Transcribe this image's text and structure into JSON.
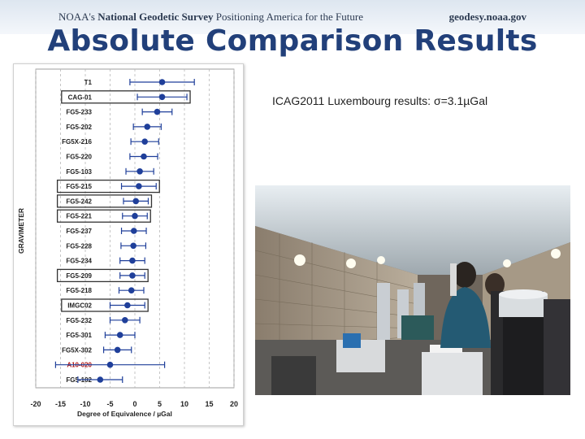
{
  "header": {
    "left_prefix": "NOAA's",
    "left_org": "National Geodetic Survey",
    "left_tagline": "Positioning America for the Future",
    "right_site": "geodesy.noaa.gov"
  },
  "slide": {
    "title": "Absolute Comparison Results",
    "caption": "ICAG2011 Luxembourg results:  σ=3.1µGal"
  },
  "photo": {
    "description": ""
  },
  "chart_data": {
    "type": "scatter",
    "orientation": "horizontal-errorbar",
    "xlabel": "Degree of Equivalence / µGal",
    "ylabel": "GRAVIMETER",
    "xlim": [
      -20,
      20
    ],
    "xticks": [
      -20,
      -15,
      -10,
      -5,
      0,
      5,
      10,
      15,
      20
    ],
    "grid": "dashed vertical",
    "point_color": "#1f3f9a",
    "highlight_box_color": "#333333",
    "instruments": [
      {
        "name": "T1",
        "value": 5.5,
        "err": 6.5,
        "highlight": false
      },
      {
        "name": "CAG-01",
        "value": 5.5,
        "err": 5.0,
        "highlight": true
      },
      {
        "name": "FG5-233",
        "value": 4.5,
        "err": 3.0,
        "highlight": false
      },
      {
        "name": "FG5-202",
        "value": 2.5,
        "err": 2.8,
        "highlight": false
      },
      {
        "name": "FG5X-216",
        "value": 2.0,
        "err": 2.8,
        "highlight": false
      },
      {
        "name": "FG5-220",
        "value": 1.8,
        "err": 2.8,
        "highlight": false
      },
      {
        "name": "FG5-103",
        "value": 1.0,
        "err": 2.8,
        "highlight": false
      },
      {
        "name": "FG5-215",
        "value": 0.8,
        "err": 3.5,
        "highlight": true
      },
      {
        "name": "FG5-242",
        "value": 0.2,
        "err": 2.5,
        "highlight": true
      },
      {
        "name": "FG5-221",
        "value": 0.0,
        "err": 2.5,
        "highlight": true
      },
      {
        "name": "FG5-237",
        "value": -0.2,
        "err": 2.5,
        "highlight": false
      },
      {
        "name": "FG5-228",
        "value": -0.3,
        "err": 2.5,
        "highlight": false
      },
      {
        "name": "FG5-234",
        "value": -0.5,
        "err": 2.5,
        "highlight": false
      },
      {
        "name": "FG5-209",
        "value": -0.5,
        "err": 2.5,
        "highlight": true
      },
      {
        "name": "FG5-218",
        "value": -0.7,
        "err": 2.5,
        "highlight": false
      },
      {
        "name": "IMGC02",
        "value": -1.5,
        "err": 3.5,
        "highlight": true
      },
      {
        "name": "FG5-232",
        "value": -2.0,
        "err": 3.0,
        "highlight": false
      },
      {
        "name": "FG5-301",
        "value": -3.0,
        "err": 3.0,
        "highlight": false
      },
      {
        "name": "FG5X-302",
        "value": -3.5,
        "err": 2.8,
        "highlight": false
      },
      {
        "name": "A10-020",
        "value": -5.0,
        "err": 11.0,
        "highlight": false
      },
      {
        "name": "FG5-102",
        "value": -7.0,
        "err": 4.5,
        "highlight": false
      }
    ]
  }
}
